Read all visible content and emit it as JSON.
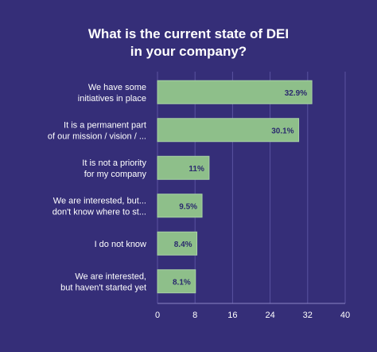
{
  "chart_data": {
    "type": "bar",
    "orientation": "horizontal",
    "title_lines": [
      "What is the current state of DEI",
      "in your company?"
    ],
    "categories": [
      [
        "We have some",
        "initiatives in place"
      ],
      [
        "It is a permanent part",
        "of our mission / vision / ..."
      ],
      [
        "It is not a priority",
        "for my company"
      ],
      [
        "We are interested, but...",
        "don't know where to st..."
      ],
      [
        "I do not know"
      ],
      [
        "We are interested,",
        "but haven't started yet"
      ]
    ],
    "values": [
      32.9,
      30.1,
      11,
      9.5,
      8.4,
      8.1
    ],
    "value_labels": [
      "32.9%",
      "30.1%",
      "11%",
      "9.5%",
      "8.4%",
      "8.1%"
    ],
    "x_ticks": [
      0,
      8,
      16,
      24,
      32,
      40
    ],
    "xlim": [
      0,
      40
    ],
    "grid": true,
    "colors": {
      "background": "#352e78",
      "bar": "#8ebf8a",
      "bar_border": "#a9d3a5",
      "data_label": "#2b2a6e",
      "text": "#ffffff",
      "grid": "#5a53a0"
    }
  }
}
